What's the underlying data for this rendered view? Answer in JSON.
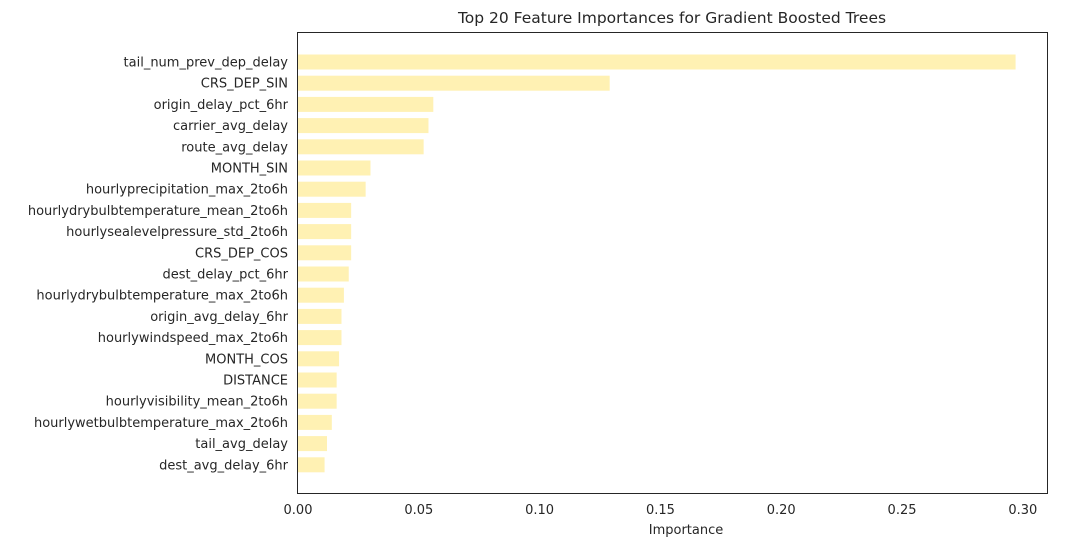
{
  "chart_data": {
    "type": "bar",
    "orientation": "horizontal",
    "title": "Top 20 Feature Importances for Gradient Boosted Trees",
    "xlabel": "Importance",
    "ylabel": "",
    "xlim": [
      0.0,
      0.31
    ],
    "xticks": [
      0.0,
      0.05,
      0.1,
      0.15,
      0.2,
      0.25,
      0.3
    ],
    "xtick_labels": [
      "0.00",
      "0.05",
      "0.10",
      "0.15",
      "0.20",
      "0.25",
      "0.30"
    ],
    "grid": false,
    "bar_color": "#fff1b3",
    "categories": [
      "tail_num_prev_dep_delay",
      "CRS_DEP_SIN",
      "origin_delay_pct_6hr",
      "carrier_avg_delay",
      "route_avg_delay",
      "MONTH_SIN",
      "hourlyprecipitation_max_2to6h",
      "hourlydrybulbtemperature_mean_2to6h",
      "hourlysealevelpressure_std_2to6h",
      "CRS_DEP_COS",
      "dest_delay_pct_6hr",
      "hourlydrybulbtemperature_max_2to6h",
      "origin_avg_delay_6hr",
      "hourlywindspeed_max_2to6h",
      "MONTH_COS",
      "DISTANCE",
      "hourlyvisibility_mean_2to6h",
      "hourlywetbulbtemperature_max_2to6h",
      "tail_avg_delay",
      "dest_avg_delay_6hr"
    ],
    "values": [
      0.297,
      0.129,
      0.056,
      0.054,
      0.052,
      0.03,
      0.028,
      0.022,
      0.022,
      0.022,
      0.021,
      0.019,
      0.018,
      0.018,
      0.017,
      0.016,
      0.016,
      0.014,
      0.012,
      0.011
    ]
  }
}
